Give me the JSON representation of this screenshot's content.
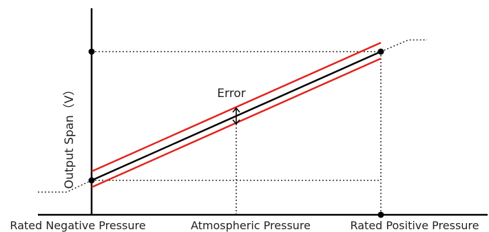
{
  "labels": {
    "y_axis": "Output Span（V）",
    "error": "Error",
    "x_left": "Rated Negative Pressure",
    "x_middle": "Atmospheric Pressure",
    "x_right": "Rated Positive Pressure"
  },
  "colors": {
    "axis": "#000000",
    "ideal_line": "#000000",
    "error_band": "#e3221c",
    "guide": "#000000"
  }
}
